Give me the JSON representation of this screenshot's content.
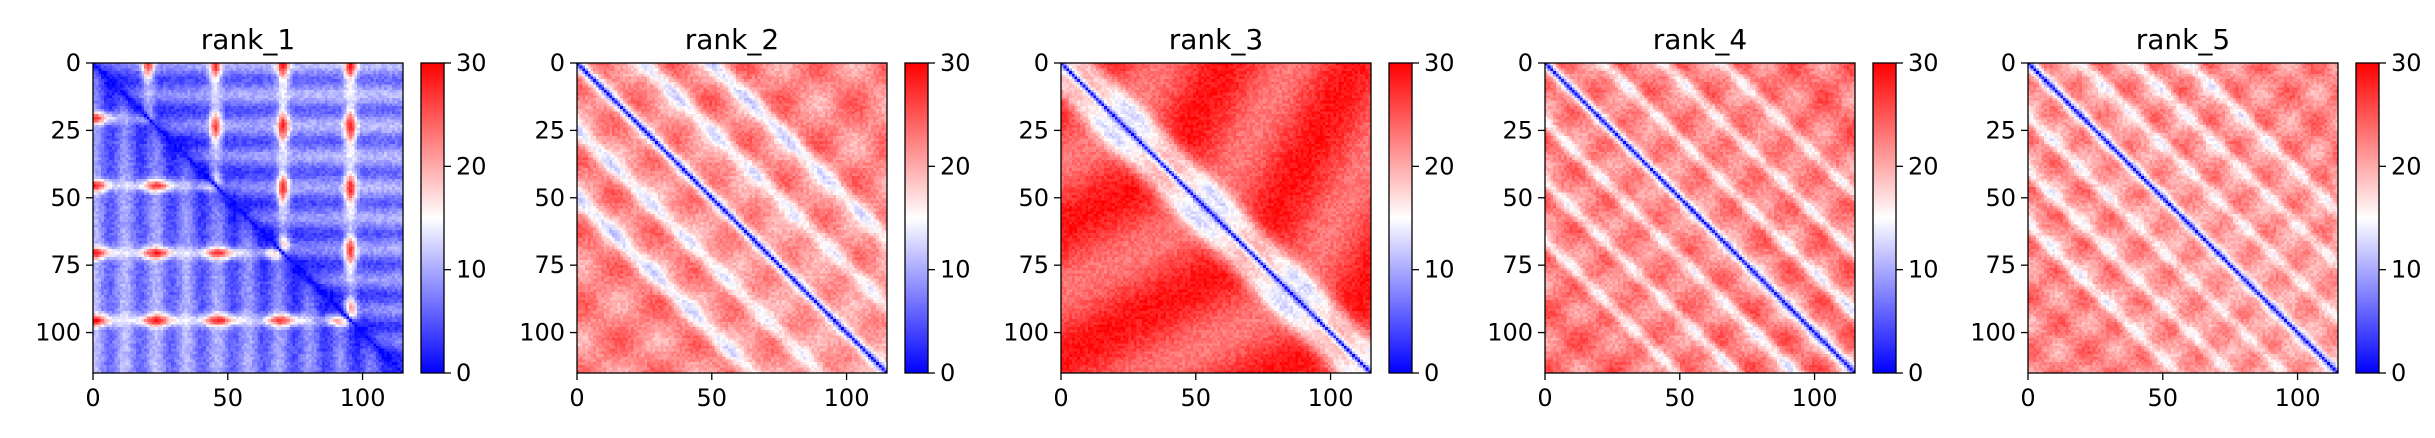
{
  "figure": {
    "colormap": {
      "name": "bwr",
      "low": "#0000ff",
      "mid": "#ffffff",
      "high": "#ff0000"
    }
  },
  "chart_data": [
    {
      "type": "heatmap",
      "title": "rank_1",
      "xlabel": "",
      "ylabel": "",
      "n": 115,
      "xlim": [
        0,
        115
      ],
      "ylim": [
        115,
        0
      ],
      "x_ticks": [
        0,
        50,
        100
      ],
      "y_ticks": [
        0,
        25,
        50,
        75,
        100
      ],
      "colorbar": {
        "min": 0,
        "max": 30,
        "ticks": [
          0,
          10,
          20,
          30
        ]
      },
      "pattern": "mostly low distance (blue); periodic red horizontal stripes near rows 20, 45, 70, 95; strong blue diagonal"
    },
    {
      "type": "heatmap",
      "title": "rank_2",
      "xlabel": "",
      "ylabel": "",
      "n": 115,
      "xlim": [
        0,
        115
      ],
      "ylim": [
        115,
        0
      ],
      "x_ticks": [
        0,
        50,
        100
      ],
      "y_ticks": [
        0,
        25,
        50,
        75,
        100
      ],
      "colorbar": {
        "min": 0,
        "max": 30,
        "ticks": [
          0,
          10,
          20,
          30
        ]
      },
      "pattern": "mostly high distance (red); blue diagonal; light off-diagonal bands with small blue patches"
    },
    {
      "type": "heatmap",
      "title": "rank_3",
      "xlabel": "",
      "ylabel": "",
      "n": 115,
      "xlim": [
        0,
        115
      ],
      "ylim": [
        115,
        0
      ],
      "x_ticks": [
        0,
        50,
        100
      ],
      "y_ticks": [
        0,
        25,
        50,
        75,
        100
      ],
      "colorbar": {
        "min": 0,
        "max": 30,
        "ticks": [
          0,
          10,
          20,
          30
        ]
      },
      "pattern": "saturated red everywhere except a narrow blue diagonal"
    },
    {
      "type": "heatmap",
      "title": "rank_4",
      "xlabel": "",
      "ylabel": "",
      "n": 115,
      "xlim": [
        0,
        115
      ],
      "ylim": [
        115,
        0
      ],
      "x_ticks": [
        0,
        50,
        100
      ],
      "y_ticks": [
        0,
        25,
        50,
        75,
        100
      ],
      "colorbar": {
        "min": 0,
        "max": 30,
        "ticks": [
          0,
          10,
          20,
          30
        ]
      },
      "pattern": "red background; blue diagonal; several parallel light off-diagonal bands"
    },
    {
      "type": "heatmap",
      "title": "rank_5",
      "xlabel": "",
      "ylabel": "",
      "n": 115,
      "xlim": [
        0,
        115
      ],
      "ylim": [
        115,
        0
      ],
      "x_ticks": [
        0,
        50,
        100
      ],
      "y_ticks": [
        0,
        25,
        50,
        75,
        100
      ],
      "colorbar": {
        "min": 0,
        "max": 30,
        "ticks": [
          0,
          10,
          20,
          30
        ]
      },
      "pattern": "red background; blue diagonal; parallel light off-diagonal bands"
    }
  ]
}
